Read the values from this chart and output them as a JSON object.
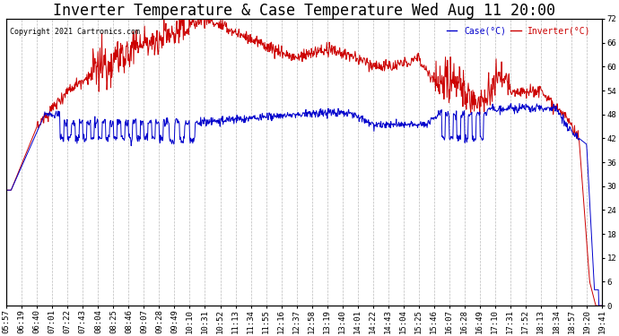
{
  "title": "Inverter Temperature & Case Temperature Wed Aug 11 20:00",
  "copyright": "Copyright 2021 Cartronics.com",
  "legend_case": "Case(°C)",
  "legend_inverter": "Inverter(°C)",
  "ylabel_right_ticks": [
    0.0,
    6.0,
    12.0,
    18.0,
    24.0,
    30.0,
    36.0,
    42.0,
    48.0,
    54.0,
    60.0,
    66.0,
    72.0
  ],
  "ylim": [
    0.0,
    72.0
  ],
  "background_color": "#ffffff",
  "grid_color": "#bbbbbb",
  "plot_bg_color": "#ffffff",
  "case_color": "#0000cc",
  "inverter_color": "#cc0000",
  "title_fontsize": 12,
  "tick_fontsize": 6.5,
  "xtick_labels": [
    "05:57",
    "06:19",
    "06:40",
    "07:01",
    "07:22",
    "07:43",
    "08:04",
    "08:25",
    "08:46",
    "09:07",
    "09:28",
    "09:49",
    "10:10",
    "10:31",
    "10:52",
    "11:13",
    "11:34",
    "11:55",
    "12:16",
    "12:37",
    "12:58",
    "13:19",
    "13:40",
    "14:01",
    "14:22",
    "14:43",
    "15:04",
    "15:25",
    "15:46",
    "16:07",
    "16:28",
    "16:49",
    "17:10",
    "17:31",
    "17:52",
    "18:13",
    "18:34",
    "18:57",
    "19:20",
    "19:41"
  ]
}
